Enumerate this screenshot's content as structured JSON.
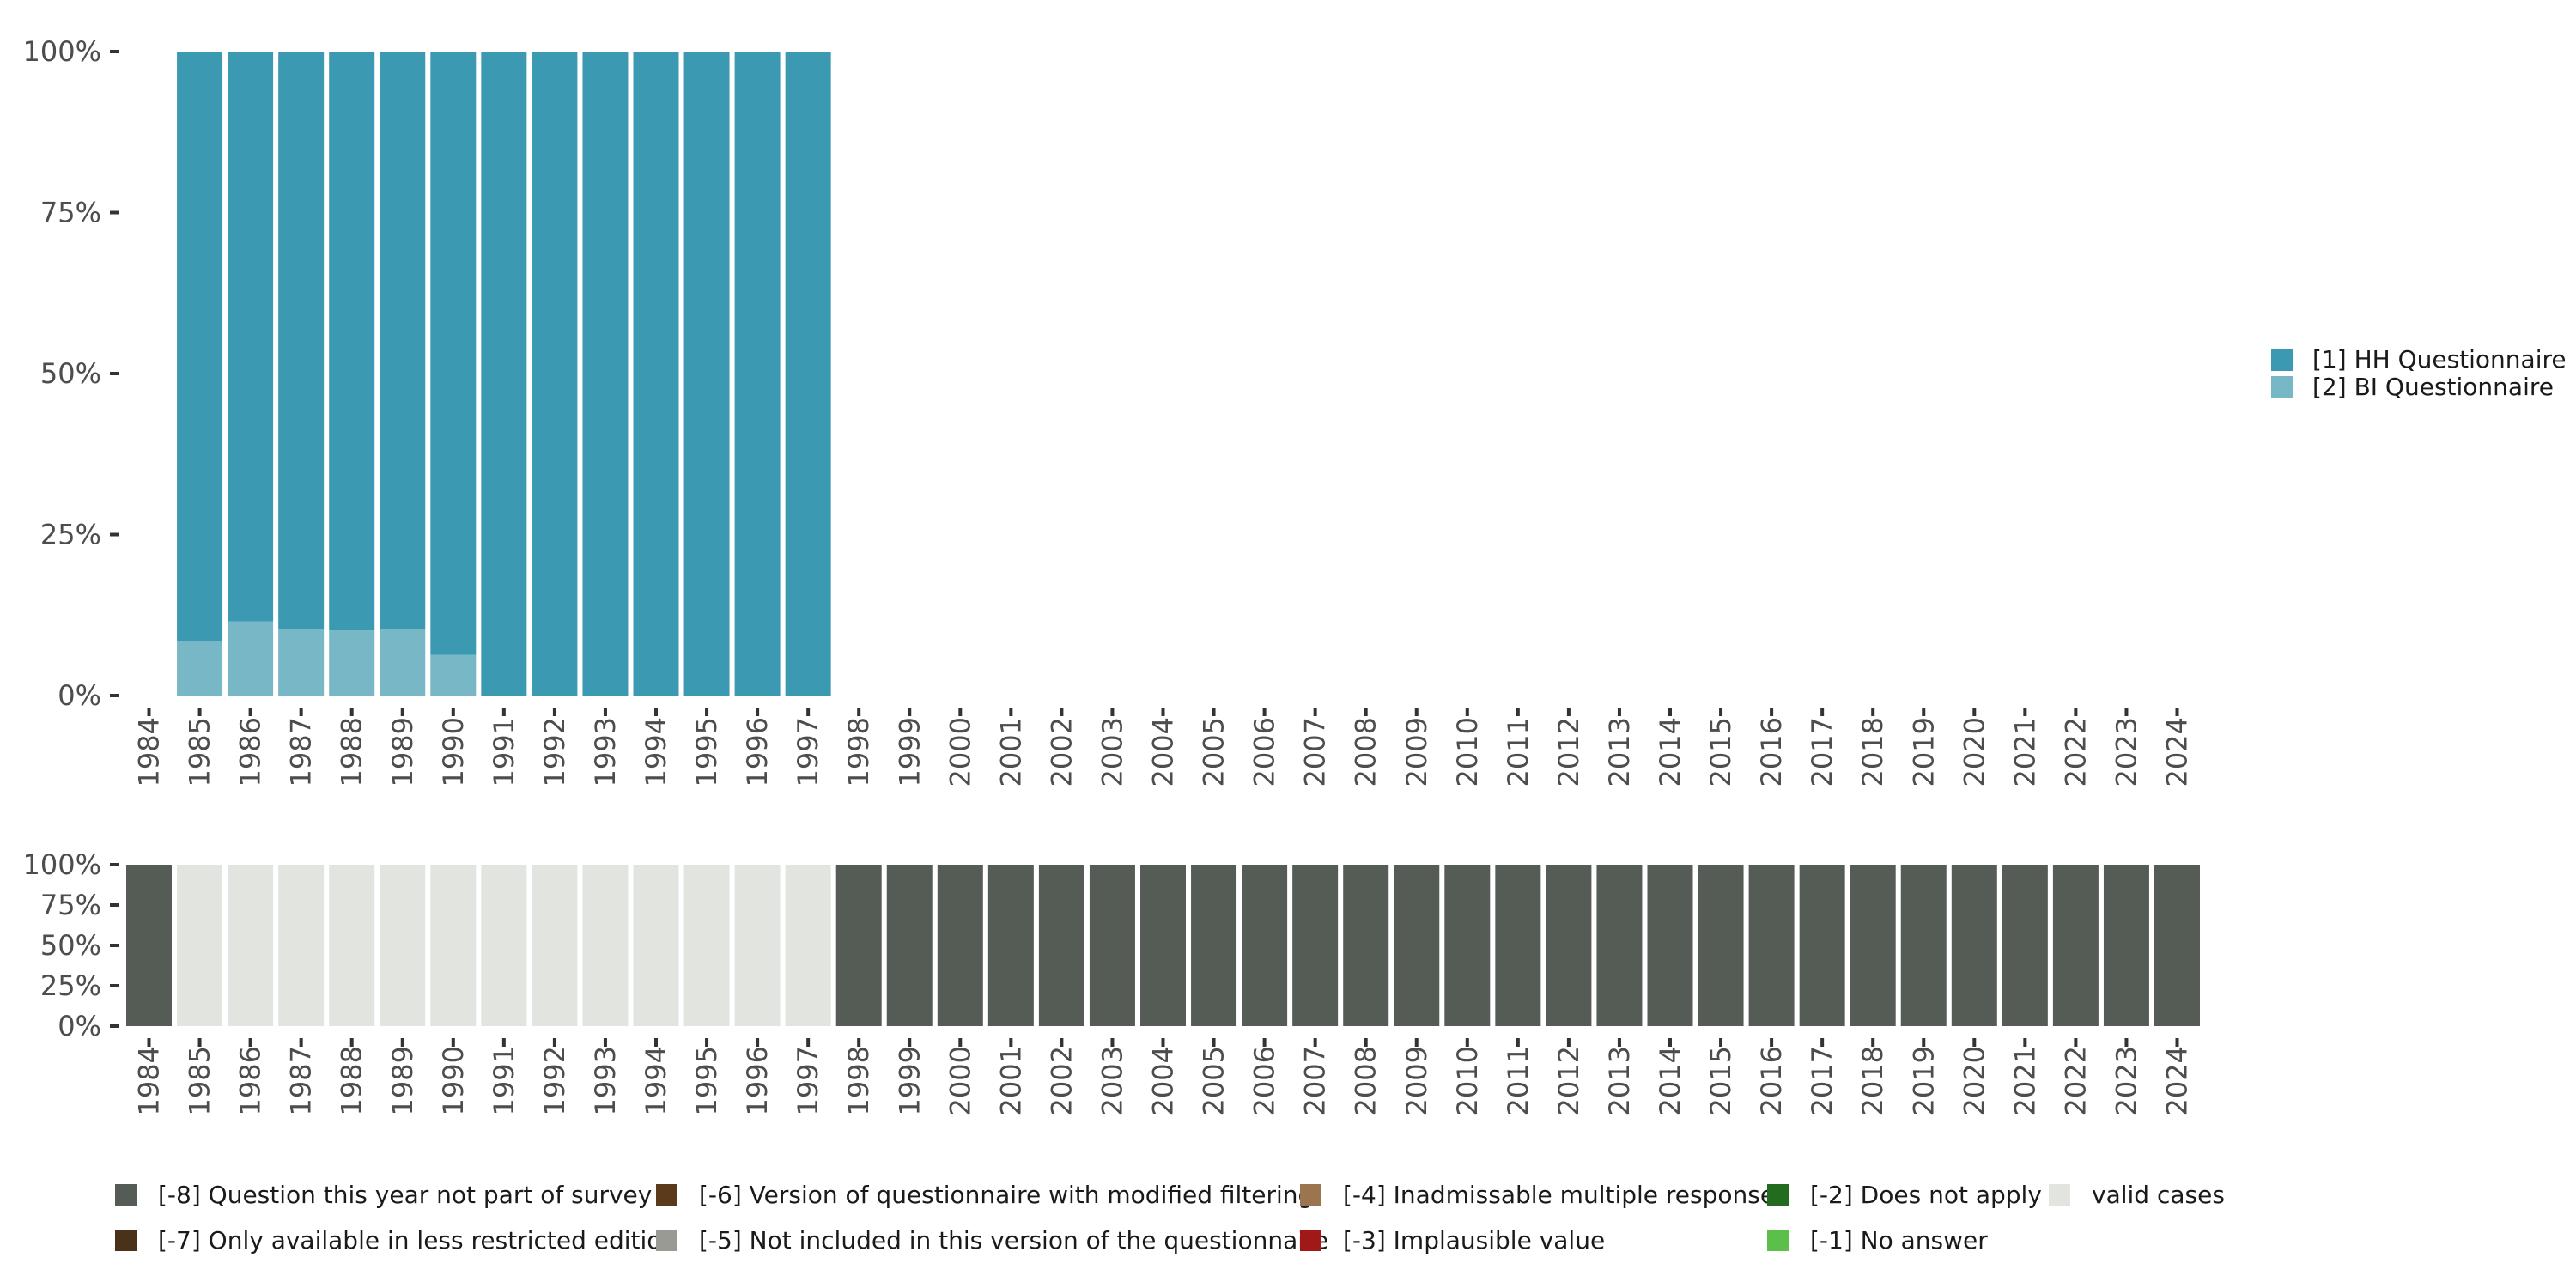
{
  "chart_data": [
    {
      "type": "bar",
      "subtype": "stacked-percent",
      "title": "",
      "xlabel": "",
      "ylabel": "",
      "ylim": [
        0,
        100
      ],
      "y_ticks": [
        "0%",
        "25%",
        "50%",
        "75%",
        "100%"
      ],
      "categories": [
        "1984",
        "1985",
        "1986",
        "1987",
        "1988",
        "1989",
        "1990",
        "1991",
        "1992",
        "1993",
        "1994",
        "1995",
        "1996",
        "1997",
        "1998",
        "1999",
        "2000",
        "2001",
        "2002",
        "2003",
        "2004",
        "2005",
        "2006",
        "2007",
        "2008",
        "2009",
        "2010",
        "2011",
        "2012",
        "2013",
        "2014",
        "2015",
        "2016",
        "2017",
        "2018",
        "2019",
        "2020",
        "2021",
        "2022",
        "2023",
        "2024"
      ],
      "legend_position": "right",
      "series": [
        {
          "name": "[2] BI Questionnaire",
          "color": "#78b7c5",
          "values": [
            null,
            8.5,
            11.5,
            10.3,
            10.1,
            10.4,
            6.3,
            0,
            0,
            0,
            0,
            0,
            0,
            0,
            null,
            null,
            null,
            null,
            null,
            null,
            null,
            null,
            null,
            null,
            null,
            null,
            null,
            null,
            null,
            null,
            null,
            null,
            null,
            null,
            null,
            null,
            null,
            null,
            null,
            null,
            null
          ]
        },
        {
          "name": "[1] HH Questionnaire",
          "color": "#3b9ab2",
          "values": [
            null,
            91.5,
            88.5,
            89.7,
            89.9,
            89.6,
            93.7,
            100,
            100,
            100,
            100,
            100,
            100,
            100,
            null,
            null,
            null,
            null,
            null,
            null,
            null,
            null,
            null,
            null,
            null,
            null,
            null,
            null,
            null,
            null,
            null,
            null,
            null,
            null,
            null,
            null,
            null,
            null,
            null,
            null,
            null
          ]
        }
      ],
      "legend": [
        {
          "label": "[1] HH Questionnaire",
          "color": "#3b9ab2"
        },
        {
          "label": "[2] BI Questionnaire",
          "color": "#78b7c5"
        }
      ]
    },
    {
      "type": "bar",
      "subtype": "stacked-percent",
      "title": "",
      "xlabel": "",
      "ylabel": "",
      "ylim": [
        0,
        100
      ],
      "y_ticks": [
        "0%",
        "25%",
        "50%",
        "75%",
        "100%"
      ],
      "categories": [
        "1984",
        "1985",
        "1986",
        "1987",
        "1988",
        "1989",
        "1990",
        "1991",
        "1992",
        "1993",
        "1994",
        "1995",
        "1996",
        "1997",
        "1998",
        "1999",
        "2000",
        "2001",
        "2002",
        "2003",
        "2004",
        "2005",
        "2006",
        "2007",
        "2008",
        "2009",
        "2010",
        "2011",
        "2012",
        "2013",
        "2014",
        "2015",
        "2016",
        "2017",
        "2018",
        "2019",
        "2020",
        "2021",
        "2022",
        "2023",
        "2024"
      ],
      "legend_position": "bottom",
      "series": [
        {
          "name": "[-8] Question this year not part of survey",
          "color": "#555b55",
          "values": [
            100,
            0,
            0,
            0,
            0,
            0,
            0,
            0,
            0,
            0,
            0,
            0,
            0,
            0,
            100,
            100,
            100,
            100,
            100,
            100,
            100,
            100,
            100,
            100,
            100,
            100,
            100,
            100,
            100,
            100,
            100,
            100,
            100,
            100,
            100,
            100,
            100,
            100,
            100,
            100,
            100
          ]
        },
        {
          "name": "valid cases",
          "color": "#e1e4df",
          "values": [
            0,
            100,
            100,
            100,
            100,
            100,
            100,
            100,
            100,
            100,
            100,
            100,
            100,
            100,
            0,
            0,
            0,
            0,
            0,
            0,
            0,
            0,
            0,
            0,
            0,
            0,
            0,
            0,
            0,
            0,
            0,
            0,
            0,
            0,
            0,
            0,
            0,
            0,
            0,
            0,
            0
          ]
        }
      ],
      "legend": [
        {
          "label": "[-8] Question this year not part of survey",
          "color": "#555b55"
        },
        {
          "label": "[-7] Only available in less restricted edition",
          "color": "#4a3119"
        },
        {
          "label": "[-6] Version of questionnaire with modified filtering",
          "color": "#5a3a1a"
        },
        {
          "label": "[-5] Not included in this version of the questionnaire",
          "color": "#9a9a94"
        },
        {
          "label": "[-4] Inadmissable multiple response",
          "color": "#9a7550"
        },
        {
          "label": "[-3] Implausible value",
          "color": "#a01818"
        },
        {
          "label": "[-2] Does not apply",
          "color": "#236b1e"
        },
        {
          "label": "[-1] No answer",
          "color": "#5cbf4a"
        },
        {
          "label": "valid cases",
          "color": "#e1e4df"
        }
      ]
    }
  ]
}
